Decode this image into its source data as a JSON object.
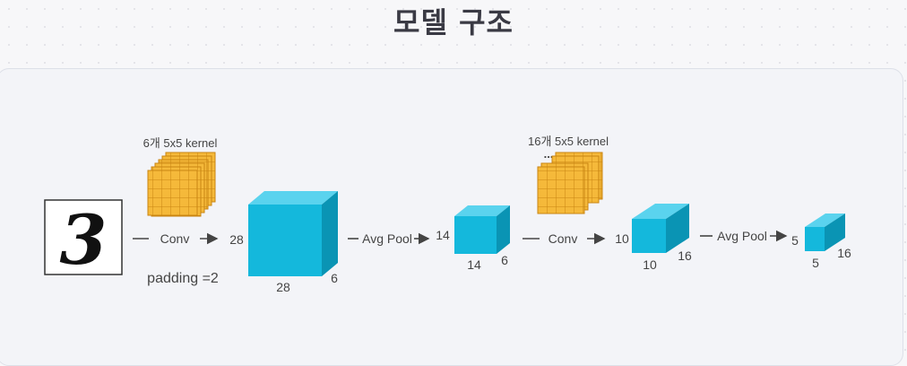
{
  "title": "모델 구조",
  "input_digit": "3",
  "kernels": {
    "first": "6개 5x5 kernel",
    "second": "16개 5x5 kernel",
    "ellipsis": "..."
  },
  "ops": {
    "conv1": "Conv",
    "pool1": "Avg Pool",
    "conv2": "Conv",
    "pool2": "Avg Pool"
  },
  "padding": "padding =2",
  "dims": {
    "c1_h": "28",
    "c1_w": "28",
    "c1_d": "6",
    "p1_h": "14",
    "p1_w": "14",
    "p1_d": "6",
    "c2_h": "10",
    "c2_w": "10",
    "c2_d": "16",
    "p2_h": "5",
    "p2_w": "5",
    "p2_d": "16"
  },
  "colors": {
    "cube_front": "#14b8dc",
    "cube_top": "#5ad3ee",
    "cube_side": "#0a94b4",
    "kernel_fill": "#f5b93a",
    "kernel_line": "#c98512"
  }
}
